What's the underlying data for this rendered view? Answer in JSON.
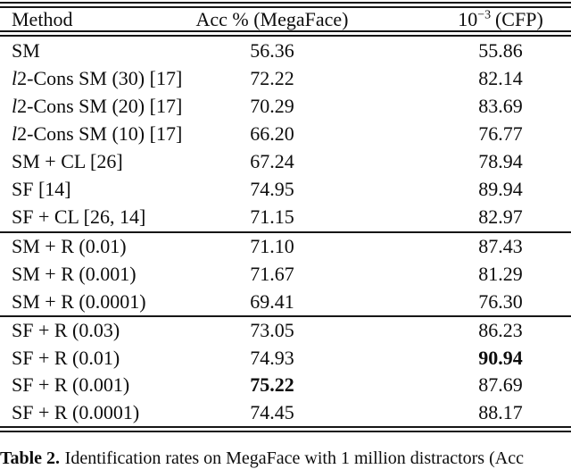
{
  "table": {
    "header": {
      "method": "Method",
      "acc": "Acc % (MegaFace)",
      "cfp_base": "10",
      "cfp_sup": "−3",
      "cfp_suffix": "(CFP)"
    },
    "groups": [
      {
        "rows": [
          {
            "method": "SM",
            "acc": "56.36",
            "cfp": "55.86"
          },
          {
            "method": "l2-Cons SM (30) [17]",
            "italic_first": true,
            "acc": "72.22",
            "cfp": "82.14"
          },
          {
            "method": "l2-Cons SM (20) [17]",
            "italic_first": true,
            "acc": "70.29",
            "cfp": "83.69"
          },
          {
            "method": "l2-Cons SM (10) [17]",
            "italic_first": true,
            "acc": "66.20",
            "cfp": "76.77"
          },
          {
            "method": "SM + CL [26]",
            "acc": "67.24",
            "cfp": "78.94"
          },
          {
            "method": "SF [14]",
            "acc": "74.95",
            "cfp": "89.94"
          },
          {
            "method": "SF + CL [26, 14]",
            "acc": "71.15",
            "cfp": "82.97"
          }
        ]
      },
      {
        "rows": [
          {
            "method": "SM + R (0.01)",
            "acc": "71.10",
            "cfp": "87.43"
          },
          {
            "method": "SM + R (0.001)",
            "acc": "71.67",
            "cfp": "81.29"
          },
          {
            "method": "SM + R (0.0001)",
            "acc": "69.41",
            "cfp": "76.30"
          }
        ]
      },
      {
        "rows": [
          {
            "method": "SF + R (0.03)",
            "acc": "73.05",
            "cfp": "86.23"
          },
          {
            "method": "SF + R (0.01)",
            "acc": "74.93",
            "cfp": "90.94",
            "cfp_bold": true
          },
          {
            "method": "SF + R (0.001)",
            "acc": "75.22",
            "acc_bold": true,
            "cfp": "87.69"
          },
          {
            "method": "SF + R (0.0001)",
            "acc": "74.45",
            "cfp": "88.17"
          }
        ]
      }
    ]
  },
  "caption": {
    "label": "Table 2.",
    "text": "Identification rates on MegaFace with 1 million distractors (Acc"
  }
}
